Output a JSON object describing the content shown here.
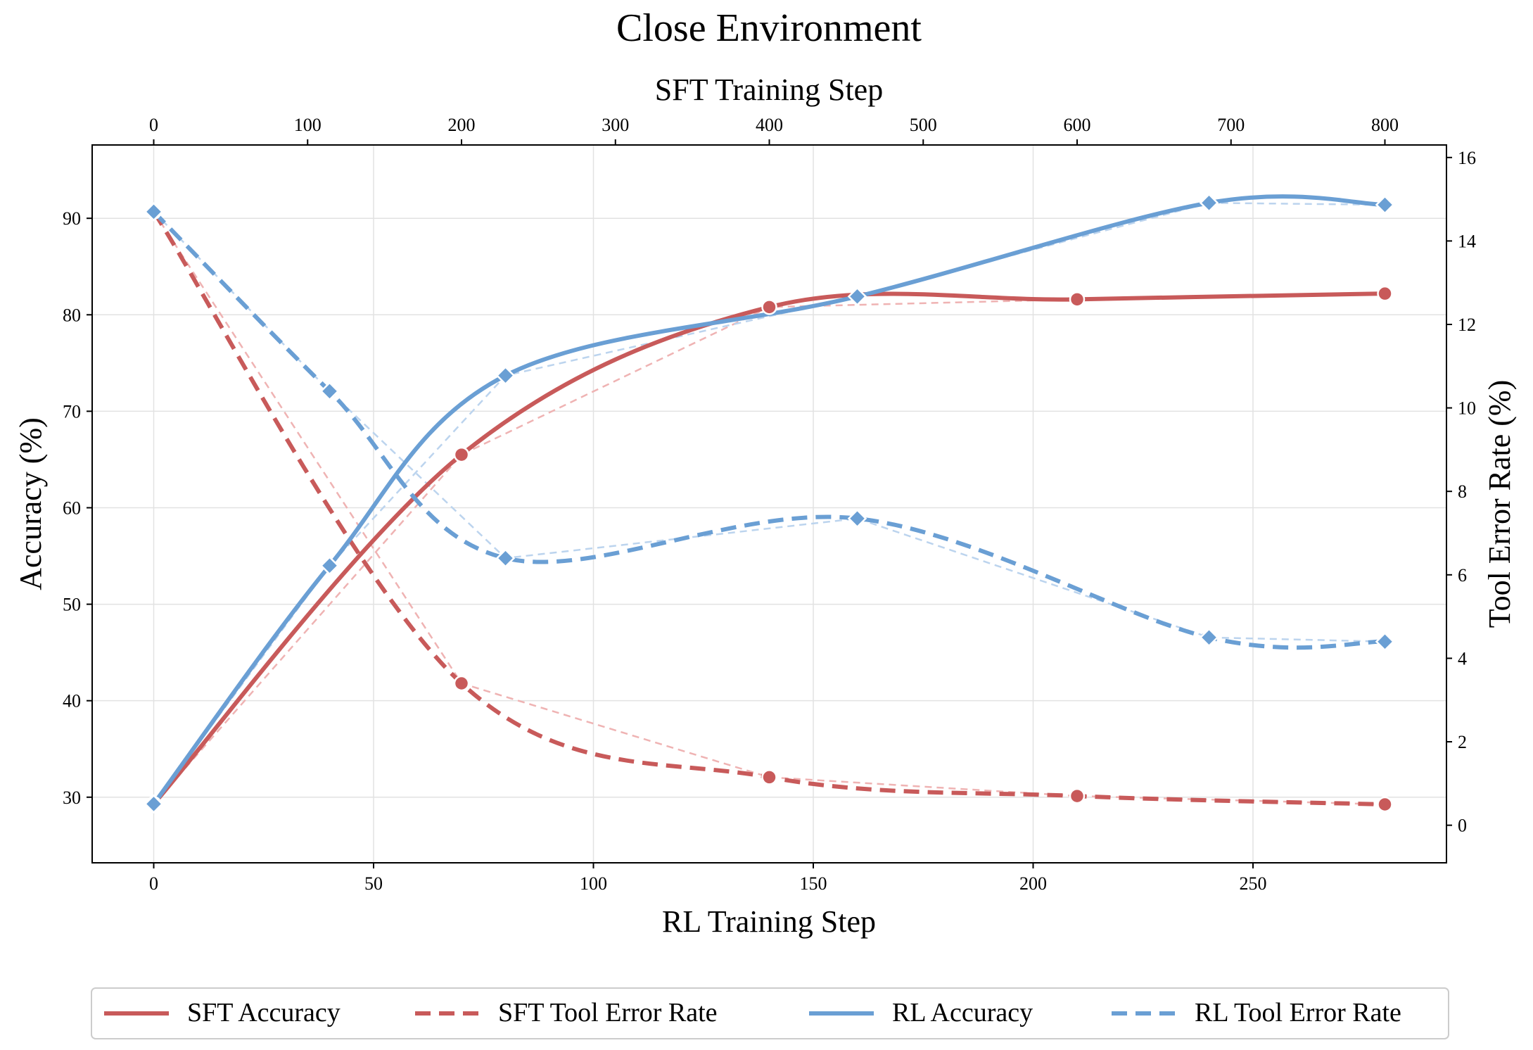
{
  "chart_data": {
    "type": "line",
    "title": "Close Environment",
    "x_bottom": {
      "label": "RL Training Step",
      "ticks": [
        0,
        50,
        100,
        150,
        200,
        250
      ],
      "range": [
        -14,
        294
      ]
    },
    "x_top": {
      "label": "SFT Training Step",
      "ticks": [
        0,
        100,
        200,
        300,
        400,
        500,
        600,
        700,
        800
      ],
      "range": [
        -40,
        840
      ]
    },
    "y_left": {
      "label": "Accuracy (%)",
      "ticks": [
        30,
        40,
        50,
        60,
        70,
        80,
        90
      ],
      "range": [
        23.2,
        97.6
      ]
    },
    "y_right": {
      "label": "Tool Error Rate (%)",
      "ticks": [
        0,
        2,
        4,
        6,
        8,
        10,
        12,
        14,
        16
      ],
      "range": [
        -0.9,
        16.3
      ]
    },
    "grid": true,
    "legend_position": "bottom",
    "series": [
      {
        "name": "SFT Accuracy",
        "axis": "left",
        "x_axis": "top",
        "style": "solid",
        "marker": "circle",
        "color": "#c85a5a",
        "x": [
          0,
          200,
          400,
          600,
          800
        ],
        "y": [
          29.3,
          65.5,
          80.8,
          81.6,
          82.2
        ]
      },
      {
        "name": "SFT Tool Error Rate",
        "axis": "right",
        "x_axis": "top",
        "style": "dashed",
        "marker": "circle",
        "color": "#c85a5a",
        "x": [
          0,
          200,
          400,
          600,
          800
        ],
        "y": [
          14.7,
          3.4,
          1.15,
          0.7,
          0.5
        ]
      },
      {
        "name": "RL Accuracy",
        "axis": "left",
        "x_axis": "bottom",
        "style": "solid",
        "marker": "diamond",
        "color": "#6a9fd4",
        "x": [
          0,
          40,
          80,
          160,
          240,
          280
        ],
        "y": [
          29.3,
          54.0,
          73.7,
          81.9,
          91.6,
          91.4
        ]
      },
      {
        "name": "RL Tool Error Rate",
        "axis": "right",
        "x_axis": "bottom",
        "style": "dashed",
        "marker": "diamond",
        "color": "#6a9fd4",
        "x": [
          0,
          40,
          80,
          160,
          240,
          280
        ],
        "y": [
          14.7,
          10.4,
          6.4,
          7.35,
          4.5,
          4.4
        ]
      }
    ]
  }
}
